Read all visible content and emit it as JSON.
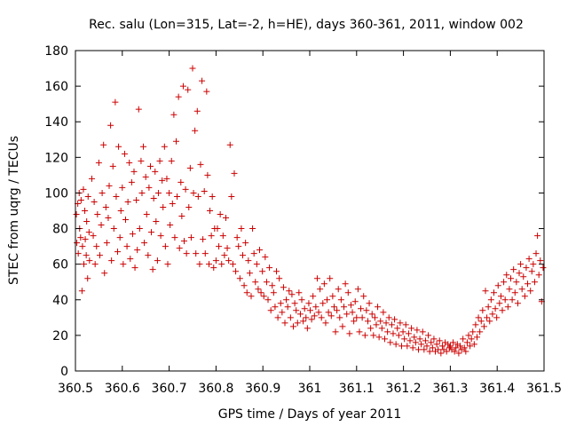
{
  "chart_data": {
    "type": "scatter",
    "title": "Rec. salu (Lon=315, Lat=-2, h=HE), days 360-361, 2011, window 002",
    "xlabel": "GPS time / Days of year 2011",
    "ylabel": "STEC from uqrg / TECUs",
    "xlim": [
      360.5,
      361.5
    ],
    "ylim": [
      0,
      180
    ],
    "x_ticks": [
      "360.5",
      "360.6",
      "360.7",
      "360.8",
      "360.9",
      "361",
      "361.1",
      "361.2",
      "361.3",
      "361.4",
      "361.5"
    ],
    "y_ticks": [
      "0",
      "20",
      "40",
      "60",
      "80",
      "100",
      "120",
      "140",
      "160",
      "180"
    ],
    "marker": "+",
    "color": "#cc0000",
    "grid": false,
    "legend": "none",
    "points": [
      [
        360.502,
        88
      ],
      [
        360.503,
        72
      ],
      [
        360.505,
        94
      ],
      [
        360.506,
        66
      ],
      [
        360.508,
        100
      ],
      [
        360.509,
        80
      ],
      [
        360.511,
        75
      ],
      [
        360.512,
        96
      ],
      [
        360.514,
        45
      ],
      [
        360.515,
        70
      ],
      [
        360.517,
        102
      ],
      [
        360.518,
        60
      ],
      [
        360.52,
        90
      ],
      [
        360.521,
        74
      ],
      [
        360.523,
        65
      ],
      [
        360.524,
        84
      ],
      [
        360.526,
        52
      ],
      [
        360.527,
        98
      ],
      [
        360.529,
        78
      ],
      [
        360.53,
        62
      ],
      [
        360.535,
        108
      ],
      [
        360.538,
        76
      ],
      [
        360.54,
        95
      ],
      [
        360.542,
        60
      ],
      [
        360.545,
        70
      ],
      [
        360.547,
        88
      ],
      [
        360.55,
        117
      ],
      [
        360.552,
        65
      ],
      [
        360.555,
        82
      ],
      [
        360.557,
        100
      ],
      [
        360.56,
        127
      ],
      [
        360.562,
        55
      ],
      [
        360.565,
        92
      ],
      [
        360.567,
        72
      ],
      [
        360.57,
        86
      ],
      [
        360.572,
        104
      ],
      [
        360.575,
        138
      ],
      [
        360.577,
        62
      ],
      [
        360.58,
        115
      ],
      [
        360.582,
        80
      ],
      [
        360.585,
        151
      ],
      [
        360.587,
        98
      ],
      [
        360.59,
        67
      ],
      [
        360.592,
        126
      ],
      [
        360.595,
        75
      ],
      [
        360.597,
        90
      ],
      [
        360.6,
        103
      ],
      [
        360.602,
        60
      ],
      [
        360.605,
        122
      ],
      [
        360.607,
        85
      ],
      [
        360.61,
        70
      ],
      [
        360.612,
        95
      ],
      [
        360.615,
        117
      ],
      [
        360.617,
        63
      ],
      [
        360.62,
        106
      ],
      [
        360.622,
        77
      ],
      [
        360.625,
        112
      ],
      [
        360.627,
        58
      ],
      [
        360.63,
        96
      ],
      [
        360.632,
        68
      ],
      [
        360.635,
        147
      ],
      [
        360.637,
        80
      ],
      [
        360.64,
        118
      ],
      [
        360.642,
        100
      ],
      [
        360.645,
        126
      ],
      [
        360.647,
        72
      ],
      [
        360.65,
        109
      ],
      [
        360.652,
        88
      ],
      [
        360.655,
        65
      ],
      [
        360.657,
        103
      ],
      [
        360.66,
        115
      ],
      [
        360.662,
        78
      ],
      [
        360.665,
        57
      ],
      [
        360.667,
        97
      ],
      [
        360.67,
        112
      ],
      [
        360.672,
        84
      ],
      [
        360.675,
        62
      ],
      [
        360.677,
        100
      ],
      [
        360.68,
        118
      ],
      [
        360.682,
        76
      ],
      [
        360.685,
        107
      ],
      [
        360.687,
        92
      ],
      [
        360.69,
        126
      ],
      [
        360.692,
        70
      ],
      [
        360.695,
        108
      ],
      [
        360.697,
        60
      ],
      [
        360.7,
        100
      ],
      [
        360.702,
        82
      ],
      [
        360.705,
        118
      ],
      [
        360.707,
        94
      ],
      [
        360.71,
        144
      ],
      [
        360.712,
        75
      ],
      [
        360.715,
        129
      ],
      [
        360.717,
        98
      ],
      [
        360.72,
        154
      ],
      [
        360.722,
        69
      ],
      [
        360.725,
        106
      ],
      [
        360.727,
        87
      ],
      [
        360.73,
        160
      ],
      [
        360.732,
        73
      ],
      [
        360.735,
        102
      ],
      [
        360.737,
        66
      ],
      [
        360.74,
        158
      ],
      [
        360.742,
        92
      ],
      [
        360.745,
        114
      ],
      [
        360.747,
        75
      ],
      [
        360.75,
        170
      ],
      [
        360.752,
        100
      ],
      [
        360.755,
        135
      ],
      [
        360.757,
        66
      ],
      [
        360.76,
        146
      ],
      [
        360.762,
        98
      ],
      [
        360.765,
        60
      ],
      [
        360.767,
        116
      ],
      [
        360.77,
        163
      ],
      [
        360.772,
        74
      ],
      [
        360.775,
        101
      ],
      [
        360.777,
        66
      ],
      [
        360.78,
        157
      ],
      [
        360.782,
        110
      ],
      [
        360.785,
        60
      ],
      [
        360.787,
        90
      ],
      [
        360.79,
        76
      ],
      [
        360.792,
        98
      ],
      [
        360.795,
        58
      ],
      [
        360.797,
        80
      ],
      [
        360.8,
        62
      ],
      [
        360.803,
        80
      ],
      [
        360.806,
        70
      ],
      [
        360.809,
        88
      ],
      [
        360.812,
        60
      ],
      [
        360.815,
        76
      ],
      [
        360.818,
        65
      ],
      [
        360.821,
        86
      ],
      [
        360.824,
        69
      ],
      [
        360.827,
        62
      ],
      [
        360.83,
        127
      ],
      [
        360.833,
        98
      ],
      [
        360.836,
        60
      ],
      [
        360.839,
        111
      ],
      [
        360.842,
        56
      ],
      [
        360.845,
        75
      ],
      [
        360.848,
        70
      ],
      [
        360.851,
        52
      ],
      [
        360.854,
        80
      ],
      [
        360.857,
        65
      ],
      [
        360.86,
        48
      ],
      [
        360.863,
        72
      ],
      [
        360.866,
        44
      ],
      [
        360.869,
        62
      ],
      [
        360.872,
        55
      ],
      [
        360.875,
        42
      ],
      [
        360.878,
        80
      ],
      [
        360.881,
        66
      ],
      [
        360.884,
        50
      ],
      [
        360.887,
        60
      ],
      [
        360.89,
        46
      ],
      [
        360.893,
        68
      ],
      [
        360.896,
        44
      ],
      [
        360.899,
        56
      ],
      [
        360.902,
        42
      ],
      [
        360.905,
        64
      ],
      [
        360.908,
        50
      ],
      [
        360.911,
        40
      ],
      [
        360.914,
        58
      ],
      [
        360.917,
        34
      ],
      [
        360.92,
        48
      ],
      [
        360.923,
        44
      ],
      [
        360.926,
        36
      ],
      [
        360.929,
        56
      ],
      [
        360.932,
        30
      ],
      [
        360.935,
        52
      ],
      [
        360.938,
        38
      ],
      [
        360.941,
        33
      ],
      [
        360.944,
        47
      ],
      [
        360.947,
        27
      ],
      [
        360.95,
        40
      ],
      [
        360.953,
        36
      ],
      [
        360.956,
        45
      ],
      [
        360.959,
        30
      ],
      [
        360.962,
        43
      ],
      [
        360.965,
        25
      ],
      [
        360.968,
        38
      ],
      [
        360.971,
        34
      ],
      [
        360.974,
        27
      ],
      [
        360.977,
        44
      ],
      [
        360.98,
        32
      ],
      [
        360.983,
        40
      ],
      [
        360.986,
        28
      ],
      [
        360.989,
        35
      ],
      [
        360.992,
        30
      ],
      [
        360.995,
        24
      ],
      [
        360.998,
        38
      ],
      [
        361.001,
        34
      ],
      [
        361.004,
        29
      ],
      [
        361.007,
        42
      ],
      [
        361.01,
        31
      ],
      [
        361.013,
        36
      ],
      [
        361.016,
        52
      ],
      [
        361.019,
        33
      ],
      [
        361.022,
        46
      ],
      [
        361.025,
        30
      ],
      [
        361.028,
        38
      ],
      [
        361.031,
        49
      ],
      [
        361.034,
        27
      ],
      [
        361.037,
        40
      ],
      [
        361.04,
        33
      ],
      [
        361.043,
        52
      ],
      [
        361.046,
        31
      ],
      [
        361.049,
        42
      ],
      [
        361.052,
        36
      ],
      [
        361.055,
        22
      ],
      [
        361.058,
        34
      ],
      [
        361.061,
        46
      ],
      [
        361.064,
        30
      ],
      [
        361.067,
        40
      ],
      [
        361.07,
        25
      ],
      [
        361.073,
        36
      ],
      [
        361.076,
        49
      ],
      [
        361.079,
        32
      ],
      [
        361.082,
        44
      ],
      [
        361.085,
        21
      ],
      [
        361.088,
        37
      ],
      [
        361.091,
        33
      ],
      [
        361.094,
        28
      ],
      [
        361.097,
        39
      ],
      [
        361.1,
        30
      ],
      [
        361.103,
        46
      ],
      [
        361.106,
        22
      ],
      [
        361.109,
        35
      ],
      [
        361.112,
        30
      ],
      [
        361.115,
        42
      ],
      [
        361.118,
        20
      ],
      [
        361.121,
        34
      ],
      [
        361.124,
        28
      ],
      [
        361.127,
        38
      ],
      [
        361.13,
        24
      ],
      [
        361.133,
        32
      ],
      [
        361.136,
        20
      ],
      [
        361.139,
        30
      ],
      [
        361.142,
        26
      ],
      [
        361.145,
        36
      ],
      [
        361.148,
        19
      ],
      [
        361.151,
        28
      ],
      [
        361.154,
        24
      ],
      [
        361.157,
        33
      ],
      [
        361.16,
        18
      ],
      [
        361.163,
        27
      ],
      [
        361.166,
        22
      ],
      [
        361.169,
        30
      ],
      [
        361.172,
        16
      ],
      [
        361.175,
        26
      ],
      [
        361.178,
        21
      ],
      [
        361.181,
        29
      ],
      [
        361.184,
        15
      ],
      [
        361.187,
        24
      ],
      [
        361.19,
        20
      ],
      [
        361.193,
        27
      ],
      [
        361.196,
        14
      ],
      [
        361.199,
        22
      ],
      [
        361.202,
        18
      ],
      [
        361.205,
        26
      ],
      [
        361.208,
        14
      ],
      [
        361.211,
        21
      ],
      [
        361.214,
        17
      ],
      [
        361.217,
        24
      ],
      [
        361.22,
        13
      ],
      [
        361.223,
        19
      ],
      [
        361.226,
        16
      ],
      [
        361.229,
        23
      ],
      [
        361.232,
        12
      ],
      [
        361.235,
        18
      ],
      [
        361.238,
        15
      ],
      [
        361.241,
        22
      ],
      [
        361.244,
        12
      ],
      [
        361.247,
        17
      ],
      [
        361.25,
        14
      ],
      [
        361.253,
        20
      ],
      [
        361.256,
        11
      ],
      [
        361.259,
        16
      ],
      [
        361.262,
        13
      ],
      [
        361.265,
        18
      ],
      [
        361.268,
        11
      ],
      [
        361.271,
        15
      ],
      [
        361.274,
        12
      ],
      [
        361.277,
        17
      ],
      [
        361.28,
        10
      ],
      [
        361.283,
        14
      ],
      [
        361.286,
        12
      ],
      [
        361.289,
        16
      ],
      [
        361.292,
        11
      ],
      [
        361.295,
        15
      ],
      [
        361.298,
        13
      ],
      [
        361.3,
        14
      ],
      [
        361.303,
        12
      ],
      [
        361.306,
        16
      ],
      [
        361.309,
        11
      ],
      [
        361.312,
        13
      ],
      [
        361.315,
        15
      ],
      [
        361.318,
        10
      ],
      [
        361.321,
        14
      ],
      [
        361.324,
        12
      ],
      [
        361.327,
        18
      ],
      [
        361.33,
        13
      ],
      [
        361.333,
        11
      ],
      [
        361.336,
        16
      ],
      [
        361.339,
        20
      ],
      [
        361.342,
        14
      ],
      [
        361.345,
        18
      ],
      [
        361.348,
        22
      ],
      [
        361.351,
        15
      ],
      [
        361.354,
        26
      ],
      [
        361.357,
        19
      ],
      [
        361.36,
        30
      ],
      [
        361.363,
        22
      ],
      [
        361.366,
        28
      ],
      [
        361.369,
        34
      ],
      [
        361.372,
        25
      ],
      [
        361.375,
        45
      ],
      [
        361.378,
        30
      ],
      [
        361.381,
        36
      ],
      [
        361.384,
        28
      ],
      [
        361.387,
        40
      ],
      [
        361.39,
        32
      ],
      [
        361.393,
        44
      ],
      [
        361.396,
        35
      ],
      [
        361.399,
        30
      ],
      [
        361.402,
        48
      ],
      [
        361.405,
        38
      ],
      [
        361.408,
        42
      ],
      [
        361.411,
        34
      ],
      [
        361.414,
        50
      ],
      [
        361.417,
        40
      ],
      [
        361.42,
        54
      ],
      [
        361.423,
        36
      ],
      [
        361.426,
        46
      ],
      [
        361.429,
        52
      ],
      [
        361.432,
        40
      ],
      [
        361.435,
        57
      ],
      [
        361.438,
        44
      ],
      [
        361.441,
        50
      ],
      [
        361.444,
        38
      ],
      [
        361.447,
        55
      ],
      [
        361.45,
        60
      ],
      [
        361.453,
        46
      ],
      [
        361.456,
        53
      ],
      [
        361.459,
        42
      ],
      [
        361.462,
        58
      ],
      [
        361.465,
        49
      ],
      [
        361.468,
        63
      ],
      [
        361.471,
        45
      ],
      [
        361.474,
        56
      ],
      [
        361.477,
        60
      ],
      [
        361.48,
        50
      ],
      [
        361.483,
        66
      ],
      [
        361.486,
        76
      ],
      [
        361.489,
        54
      ],
      [
        361.492,
        62
      ],
      [
        361.495,
        39
      ],
      [
        361.498,
        58
      ]
    ]
  }
}
